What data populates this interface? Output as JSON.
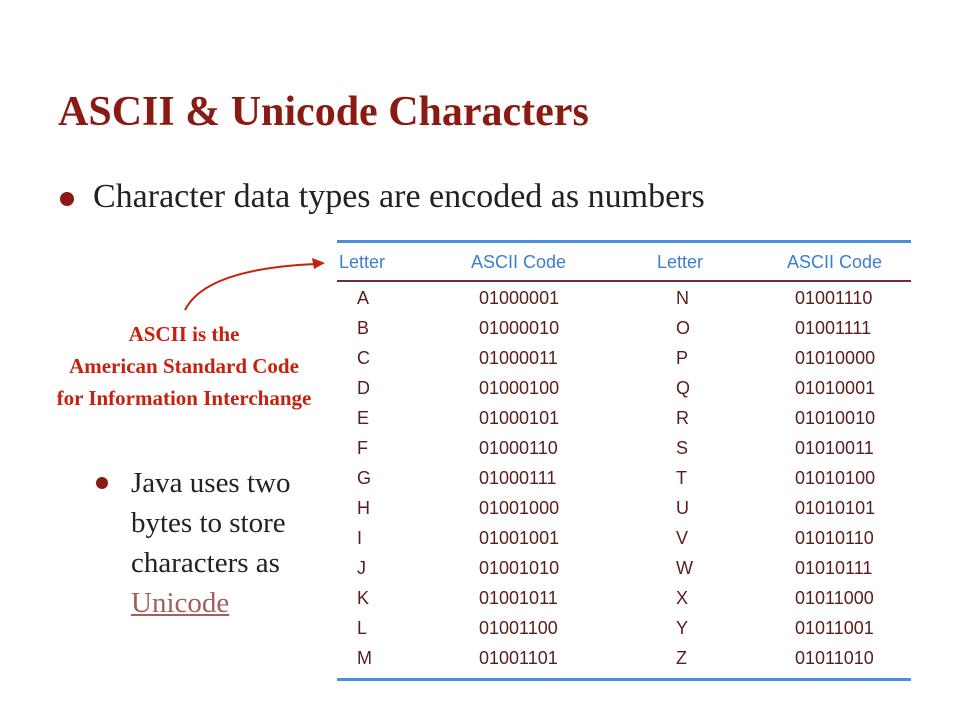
{
  "title": "ASCII & Unicode Characters",
  "bullet1": "Character data types are encoded as numbers",
  "note": {
    "line1": "ASCII is the",
    "line2": "American Standard Code",
    "line3": "for Information Interchange"
  },
  "bullet2": {
    "text": "Java uses two bytes to store characters as",
    "link": "Unicode"
  },
  "table": {
    "headers": [
      "Letter",
      "ASCII Code",
      "Letter",
      "ASCII Code"
    ],
    "rows": [
      [
        "A",
        "01000001",
        "N",
        "01001110"
      ],
      [
        "B",
        "01000010",
        "O",
        "01001111"
      ],
      [
        "C",
        "01000011",
        "P",
        "01010000"
      ],
      [
        "D",
        "01000100",
        "Q",
        "01010001"
      ],
      [
        "E",
        "01000101",
        "R",
        "01010010"
      ],
      [
        "F",
        "01000110",
        "S",
        "01010011"
      ],
      [
        "G",
        "01000111",
        "T",
        "01010100"
      ],
      [
        "H",
        "01001000",
        "U",
        "01010101"
      ],
      [
        "I",
        "01001001",
        "V",
        "01010110"
      ],
      [
        "J",
        "01001010",
        "W",
        "01010111"
      ],
      [
        "K",
        "01001011",
        "X",
        "01011000"
      ],
      [
        "L",
        "01001100",
        "Y",
        "01011001"
      ],
      [
        "M",
        "01001101",
        "Z",
        "01011010"
      ]
    ]
  },
  "colors": {
    "title": "#8b1a12",
    "note": "#c8200e",
    "header": "#3a7fd0",
    "rule": "#4a8fdc"
  }
}
